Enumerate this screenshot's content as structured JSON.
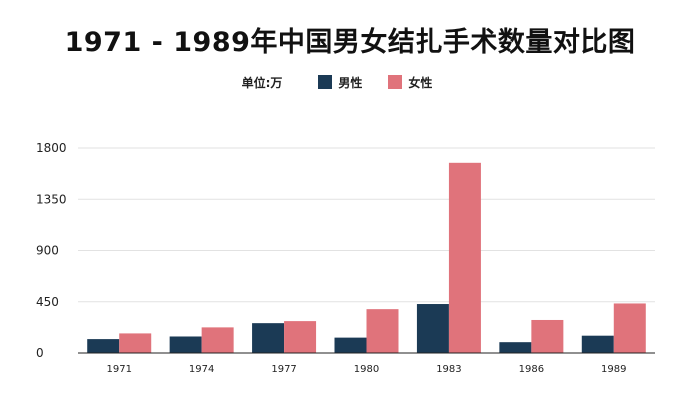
{
  "chart_data": {
    "type": "bar",
    "title": "1971 - 1989年中国男女结扎手术数量对比图",
    "unit_label": "单位:万",
    "categories": [
      "1971",
      "1974",
      "1977",
      "1980",
      "1983",
      "1986",
      "1989"
    ],
    "series": [
      {
        "name": "男性",
        "color": "#1b3a55",
        "values": [
          122,
          145,
          262,
          135,
          430,
          95,
          152
        ]
      },
      {
        "name": "女性",
        "color": "#e0737b",
        "values": [
          172,
          225,
          280,
          385,
          1670,
          290,
          435
        ]
      }
    ],
    "yticks": [
      0,
      450,
      900,
      1350,
      1800
    ],
    "ylim": [
      0,
      1800
    ],
    "grid": true,
    "legend_position": "top-center"
  }
}
